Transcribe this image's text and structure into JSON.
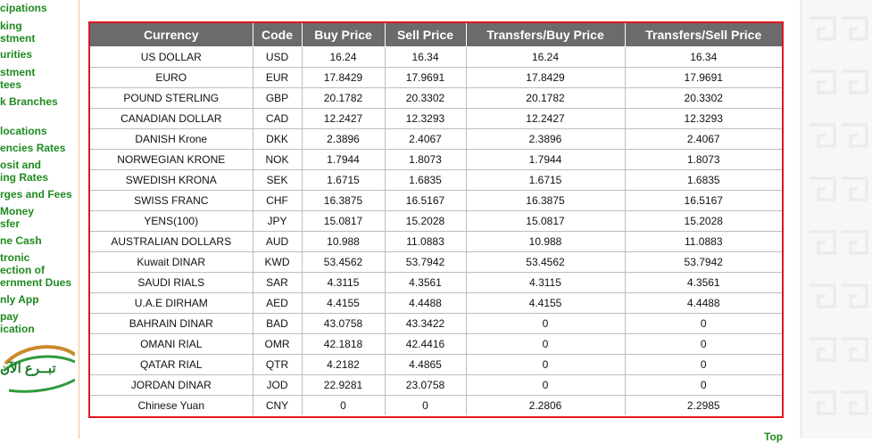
{
  "sidebar": {
    "items": [
      {
        "label": "cipations"
      },
      {
        "label": "king"
      },
      {
        "label": "stment"
      },
      {
        "label": "urities"
      },
      {
        "label": "stment"
      },
      {
        "label": "tees"
      },
      {
        "label": "k Branches"
      },
      {
        "label": "locations"
      },
      {
        "label": "encies Rates"
      },
      {
        "label": "osit and"
      },
      {
        "label": "ing Rates"
      },
      {
        "label": "rges and Fees"
      },
      {
        "label": "Money"
      },
      {
        "label": "sfer"
      },
      {
        "label": "ne Cash"
      },
      {
        "label": "tronic"
      },
      {
        "label": "ection of"
      },
      {
        "label": "ernment Dues"
      },
      {
        "label": "nly App"
      },
      {
        "label": "pay"
      },
      {
        "label": "ication"
      }
    ],
    "logo_text": "تبــرع الآن"
  },
  "table": {
    "headers": [
      "Currency",
      "Code",
      "Buy Price",
      "Sell Price",
      "Transfers/Buy Price",
      "Transfers/Sell Price"
    ],
    "rows": [
      [
        "US DOLLAR",
        "USD",
        "16.24",
        "16.34",
        "16.24",
        "16.34"
      ],
      [
        "EURO",
        "EUR",
        "17.8429",
        "17.9691",
        "17.8429",
        "17.9691"
      ],
      [
        "POUND STERLING",
        "GBP",
        "20.1782",
        "20.3302",
        "20.1782",
        "20.3302"
      ],
      [
        "CANADIAN DOLLAR",
        "CAD",
        "12.2427",
        "12.3293",
        "12.2427",
        "12.3293"
      ],
      [
        "DANISH Krone",
        "DKK",
        "2.3896",
        "2.4067",
        "2.3896",
        "2.4067"
      ],
      [
        "NORWEGIAN KRONE",
        "NOK",
        "1.7944",
        "1.8073",
        "1.7944",
        "1.8073"
      ],
      [
        "SWEDISH KRONA",
        "SEK",
        "1.6715",
        "1.6835",
        "1.6715",
        "1.6835"
      ],
      [
        "SWISS FRANC",
        "CHF",
        "16.3875",
        "16.5167",
        "16.3875",
        "16.5167"
      ],
      [
        "YENS(100)",
        "JPY",
        "15.0817",
        "15.2028",
        "15.0817",
        "15.2028"
      ],
      [
        "AUSTRALIAN DOLLARS",
        "AUD",
        "10.988",
        "11.0883",
        "10.988",
        "11.0883"
      ],
      [
        "Kuwait DINAR",
        "KWD",
        "53.4562",
        "53.7942",
        "53.4562",
        "53.7942"
      ],
      [
        "SAUDI RIALS",
        "SAR",
        "4.3115",
        "4.3561",
        "4.3115",
        "4.3561"
      ],
      [
        "U.A.E DIRHAM",
        "AED",
        "4.4155",
        "4.4488",
        "4.4155",
        "4.4488"
      ],
      [
        "BAHRAIN DINAR",
        "BAD",
        "43.0758",
        "43.3422",
        "0",
        "0"
      ],
      [
        "OMANI RIAL",
        "OMR",
        "42.1818",
        "42.4416",
        "0",
        "0"
      ],
      [
        "QATAR RIAL",
        "QTR",
        "4.2182",
        "4.4865",
        "0",
        "0"
      ],
      [
        "JORDAN DINAR",
        "JOD",
        "22.9281",
        "23.0758",
        "0",
        "0"
      ],
      [
        "Chinese Yuan",
        "CNY",
        "0",
        "0",
        "2.2806",
        "2.2985"
      ]
    ]
  },
  "footer": {
    "top_link": "Top"
  },
  "colors": {
    "accent_green": "#1f8a1f",
    "table_border": "#e2161e",
    "header_bg": "#6b6b6b"
  }
}
